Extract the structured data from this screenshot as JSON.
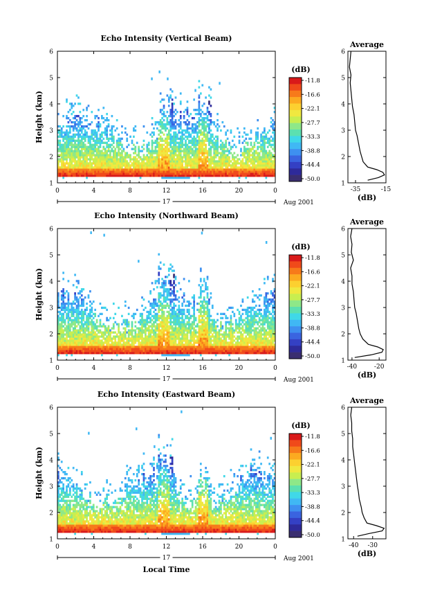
{
  "xlabel": "Local Time",
  "date_label": "Aug 2001",
  "day_label": "17",
  "colorbar_unit": "(dB)",
  "colorbar_ticks": [
    "-11.8",
    "-16.6",
    "-22.1",
    "-27.7",
    "-33.3",
    "-38.8",
    "-44.4",
    "-50.0"
  ],
  "colorbar_colors": [
    "#d91a1a",
    "#f04a1a",
    "#f77a1a",
    "#fcaa20",
    "#fcd030",
    "#f0e840",
    "#c8ee50",
    "#8ee888",
    "#5ce0b0",
    "#40d8e8",
    "#40b8f4",
    "#3e90f0",
    "#3a64e0",
    "#3440c4",
    "#2e2a9a",
    "#3a2e70"
  ],
  "chart_data": [
    {
      "type": "heatmap",
      "title": "Echo Intensity (Vertical Beam)",
      "xlabel": "",
      "ylabel": "Height (km)",
      "xlim": [
        0,
        24
      ],
      "ylim": [
        1,
        6
      ],
      "x_ticks": [
        "0",
        "4",
        "8",
        "12",
        "16",
        "20",
        "0"
      ],
      "y_ticks": [
        "1",
        "2",
        "3",
        "4",
        "5",
        "6"
      ],
      "profile": {
        "title": "Average",
        "xlabel": "(dB)",
        "xlim": [
          -40,
          -15
        ],
        "x_ticks": [
          "-35",
          "-15"
        ],
        "x_tick_values": [
          -35,
          -15
        ],
        "y": [
          1.1,
          1.2,
          1.3,
          1.4,
          1.5,
          1.6,
          1.8,
          2.0,
          2.2,
          2.5,
          2.8,
          3.0,
          3.3,
          3.6,
          3.9,
          4.2,
          4.5,
          4.8,
          5.1,
          5.4,
          5.7,
          6.0
        ],
        "x": [
          -27,
          -20,
          -16,
          -17,
          -21,
          -27,
          -30,
          -31,
          -32,
          -33,
          -34,
          -35,
          -35.5,
          -36,
          -37,
          -37.5,
          -38,
          -38.5,
          -38,
          -39,
          -38.5,
          -38
        ]
      }
    },
    {
      "type": "heatmap",
      "title": "Echo Intensity (Northward Beam)",
      "xlabel": "",
      "ylabel": "Height (km)",
      "xlim": [
        0,
        24
      ],
      "ylim": [
        1,
        6
      ],
      "x_ticks": [
        "0",
        "4",
        "8",
        "12",
        "16",
        "20",
        "0"
      ],
      "y_ticks": [
        "1",
        "2",
        "3",
        "4",
        "5",
        "6"
      ],
      "profile": {
        "title": "Average",
        "xlabel": "(dB)",
        "xlim": [
          -43,
          -15
        ],
        "x_ticks": [
          "-40",
          "-20"
        ],
        "x_tick_values": [
          -40,
          -20
        ],
        "y": [
          1.1,
          1.2,
          1.3,
          1.4,
          1.5,
          1.6,
          1.8,
          2.0,
          2.2,
          2.5,
          2.8,
          3.0,
          3.3,
          3.6,
          3.9,
          4.2,
          4.5,
          4.8,
          5.1,
          5.4,
          5.7,
          6.0
        ],
        "x": [
          -38,
          -26,
          -18,
          -17,
          -21,
          -28,
          -32,
          -34,
          -35,
          -36,
          -37,
          -38,
          -38.5,
          -39,
          -40,
          -40,
          -41,
          -39,
          -40.5,
          -40,
          -41,
          -40
        ]
      }
    },
    {
      "type": "heatmap",
      "title": "Echo Intensity (Eastward Beam)",
      "xlabel": "Local Time",
      "ylabel": "Height (km)",
      "xlim": [
        0,
        24
      ],
      "ylim": [
        1,
        6
      ],
      "x_ticks": [
        "0",
        "4",
        "8",
        "12",
        "16",
        "20",
        "0"
      ],
      "y_ticks": [
        "1",
        "2",
        "3",
        "4",
        "5",
        "6"
      ],
      "profile": {
        "title": "Average",
        "xlabel": "(dB)",
        "xlim": [
          -43,
          -23
        ],
        "x_ticks": [
          "-40",
          "-30"
        ],
        "x_tick_values": [
          -40,
          -30
        ],
        "y": [
          1.1,
          1.2,
          1.3,
          1.4,
          1.5,
          1.6,
          1.8,
          2.0,
          2.2,
          2.5,
          2.8,
          3.0,
          3.3,
          3.6,
          3.9,
          4.2,
          4.5,
          4.8,
          5.1,
          5.4,
          5.7,
          6.0
        ],
        "x": [
          -38,
          -32,
          -25,
          -24,
          -28,
          -33,
          -34.5,
          -35.5,
          -36,
          -37,
          -37.5,
          -38,
          -38.5,
          -39,
          -39.5,
          -40,
          -40.5,
          -40.5,
          -41,
          -41,
          -41.5,
          -41
        ]
      }
    }
  ]
}
